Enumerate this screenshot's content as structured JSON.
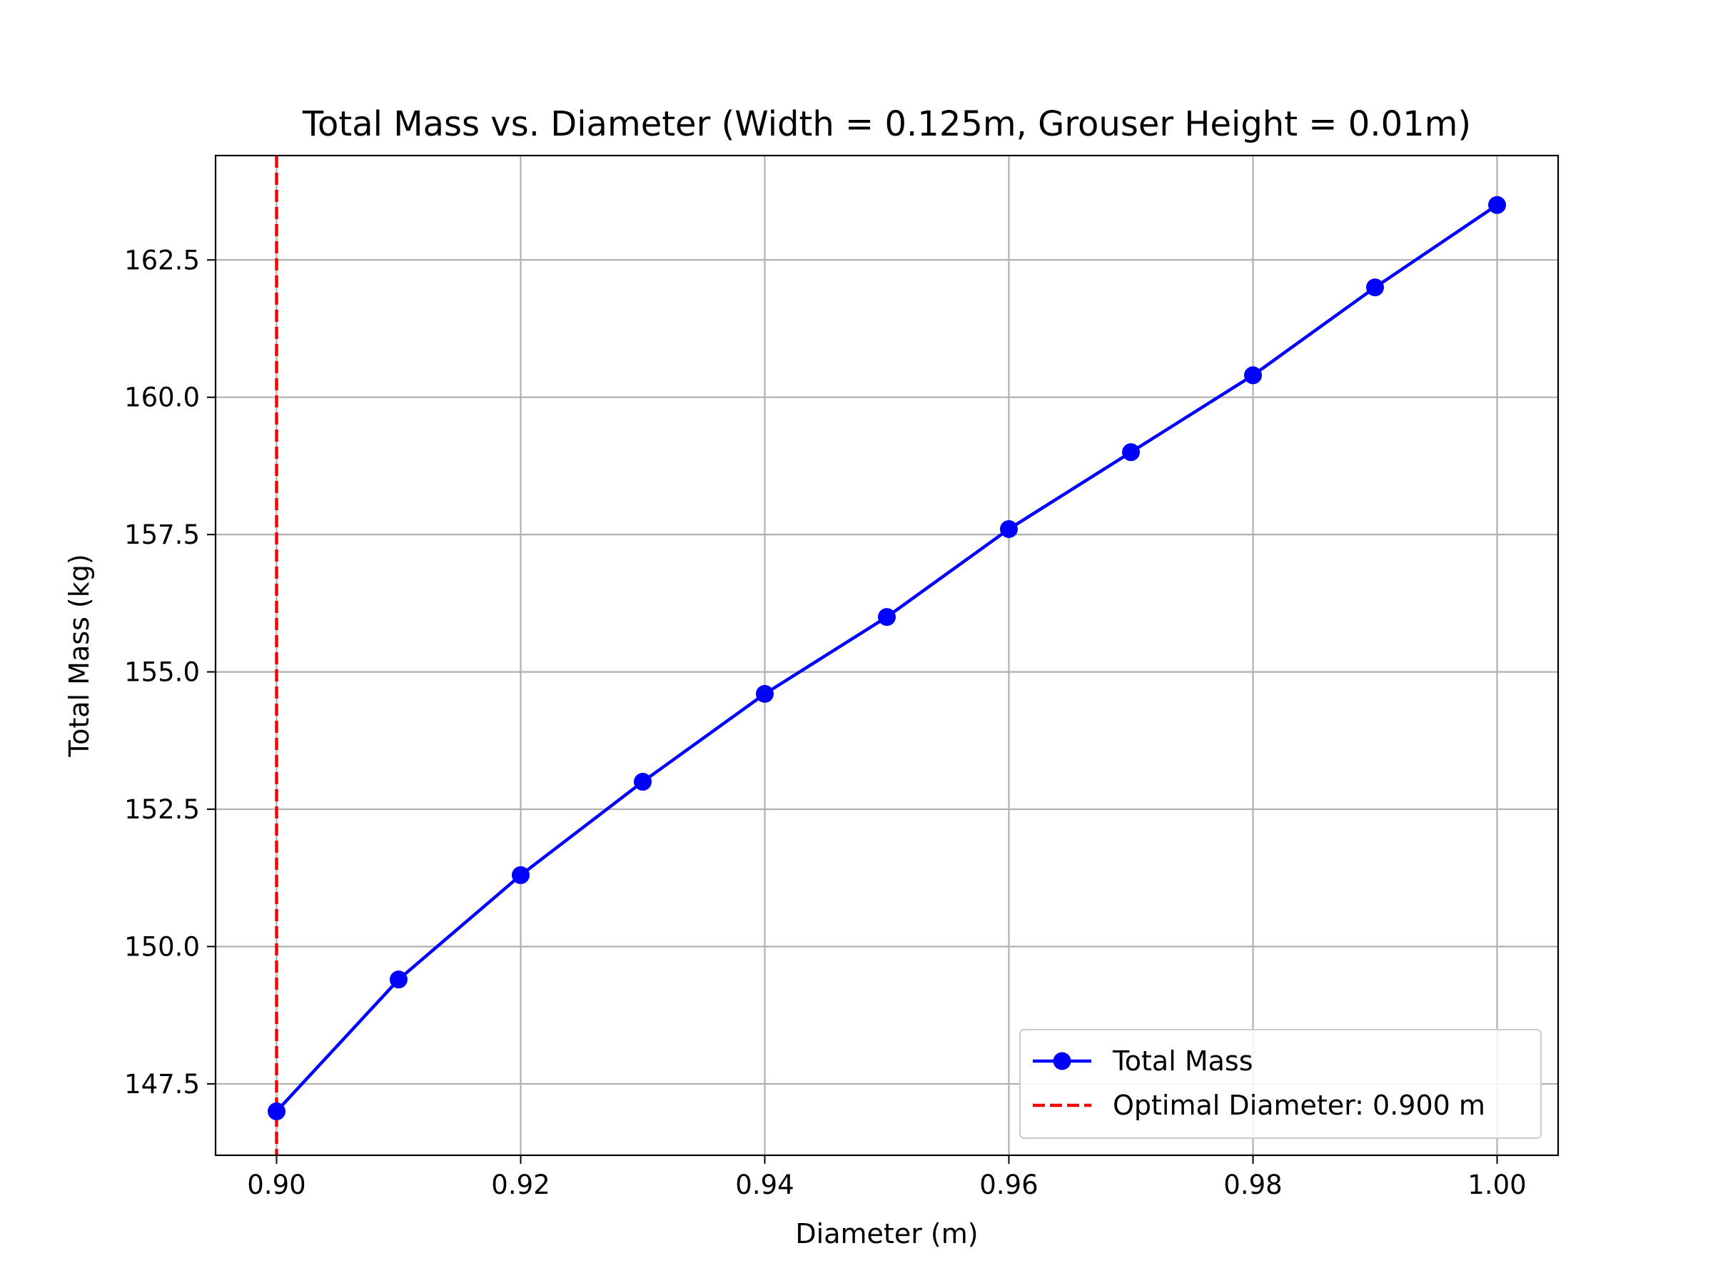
{
  "chart_data": {
    "type": "line",
    "title": "Total Mass vs. Diameter (Width = 0.125m, Grouser Height = 0.01m)",
    "xlabel": "Diameter (m)",
    "ylabel": "Total Mass (kg)",
    "xlim": [
      0.895,
      1.005
    ],
    "ylim": [
      146.2,
      164.4
    ],
    "grid": true,
    "legend_position": "lower right",
    "x_ticks": [
      0.9,
      0.92,
      0.94,
      0.96,
      0.98,
      1.0
    ],
    "x_tick_labels": [
      "0.90",
      "0.92",
      "0.94",
      "0.96",
      "0.98",
      "1.00"
    ],
    "y_ticks": [
      147.5,
      150.0,
      152.5,
      155.0,
      157.5,
      160.0,
      162.5
    ],
    "y_tick_labels": [
      "147.5",
      "150.0",
      "152.5",
      "155.0",
      "157.5",
      "160.0",
      "162.5"
    ],
    "series": [
      {
        "name": "Total Mass",
        "color": "#0000ff",
        "marker": "circle",
        "line_style": "solid",
        "x": [
          0.9,
          0.91,
          0.92,
          0.93,
          0.94,
          0.95,
          0.96,
          0.97,
          0.98,
          0.99,
          1.0
        ],
        "y": [
          147.0,
          149.4,
          151.3,
          153.0,
          154.6,
          156.0,
          157.6,
          159.0,
          160.4,
          162.0,
          163.5
        ]
      }
    ],
    "reference_lines": [
      {
        "name": "Optimal Diameter: 0.900 m",
        "orientation": "vertical",
        "x": 0.9,
        "color": "#ff0000",
        "line_style": "dashed"
      }
    ]
  }
}
